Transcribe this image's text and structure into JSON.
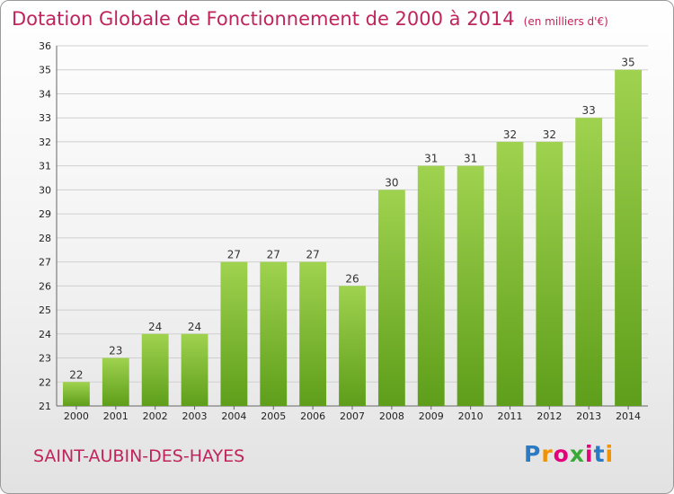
{
  "header": {
    "title": "Dotation Globale de Fonctionnement de 2000 à 2014",
    "unit": "(en milliers d'€)"
  },
  "footer": {
    "commune": "SAINT-AUBIN-DES-HAYES",
    "logo": {
      "letters": [
        "P",
        "r",
        "o",
        "x",
        "i",
        "t",
        "i"
      ],
      "letter_colors": [
        "#2b7bc4",
        "#f39200",
        "#e3007a",
        "#3aa935",
        "#e3007a",
        "#2b7bc4",
        "#f39200"
      ]
    }
  },
  "colors": {
    "title": "#c0245b",
    "bar_light": "#9fd24f",
    "bar_dark": "#5e9e1a",
    "grid": "#cfcfcf"
  },
  "chart_data": {
    "type": "bar",
    "title": "Dotation Globale de Fonctionnement de 2000 à 2014",
    "subtitle": "(en milliers d'€)",
    "categories": [
      "2000",
      "2001",
      "2002",
      "2003",
      "2004",
      "2005",
      "2006",
      "2007",
      "2008",
      "2009",
      "2010",
      "2011",
      "2012",
      "2013",
      "2014"
    ],
    "values": [
      22,
      23,
      24,
      24,
      27,
      27,
      27,
      26,
      30,
      31,
      31,
      32,
      32,
      33,
      35
    ],
    "ylim": [
      21,
      36
    ],
    "yticks": [
      21,
      22,
      23,
      24,
      25,
      26,
      27,
      28,
      29,
      30,
      31,
      32,
      33,
      34,
      35,
      36
    ],
    "grid": true,
    "data_labels": true
  }
}
